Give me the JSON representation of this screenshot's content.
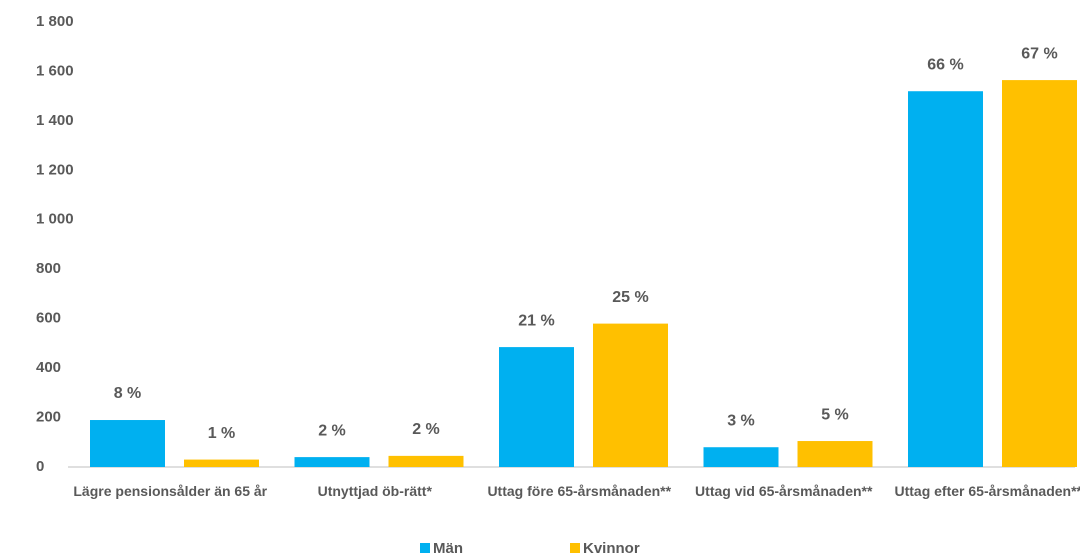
{
  "chart_data": {
    "type": "bar",
    "categories": [
      "Lägre pensionsålder än 65 år",
      "Utnyttjad öb-rätt*",
      "Uttag före 65-årsmånaden**",
      "Uttag vid 65-årsmånaden**",
      "Uttag efter 65-årsmånaden**"
    ],
    "series": [
      {
        "name": "Män",
        "color": "#00b0f0",
        "values": [
          190,
          40,
          485,
          80,
          1520
        ],
        "labels": [
          "8 %",
          "2 %",
          "21 %",
          "3 %",
          "66 %"
        ]
      },
      {
        "name": "Kvinnor",
        "color": "#ffc000",
        "values": [
          30,
          45,
          580,
          105,
          1565
        ],
        "labels": [
          "1 %",
          "2 %",
          "25 %",
          "5 %",
          "67 %"
        ]
      }
    ],
    "ylim": [
      0,
      1800
    ],
    "yticks": [
      0,
      200,
      400,
      600,
      800,
      {
        "value": 1000,
        "label": "1 000"
      },
      {
        "value": 1200,
        "label": "1 200"
      },
      {
        "value": 1400,
        "label": "1 400"
      },
      {
        "value": 1600,
        "label": "1 600"
      },
      {
        "value": 1800,
        "label": "1 800"
      }
    ],
    "grid": false,
    "legend": "bottom"
  }
}
